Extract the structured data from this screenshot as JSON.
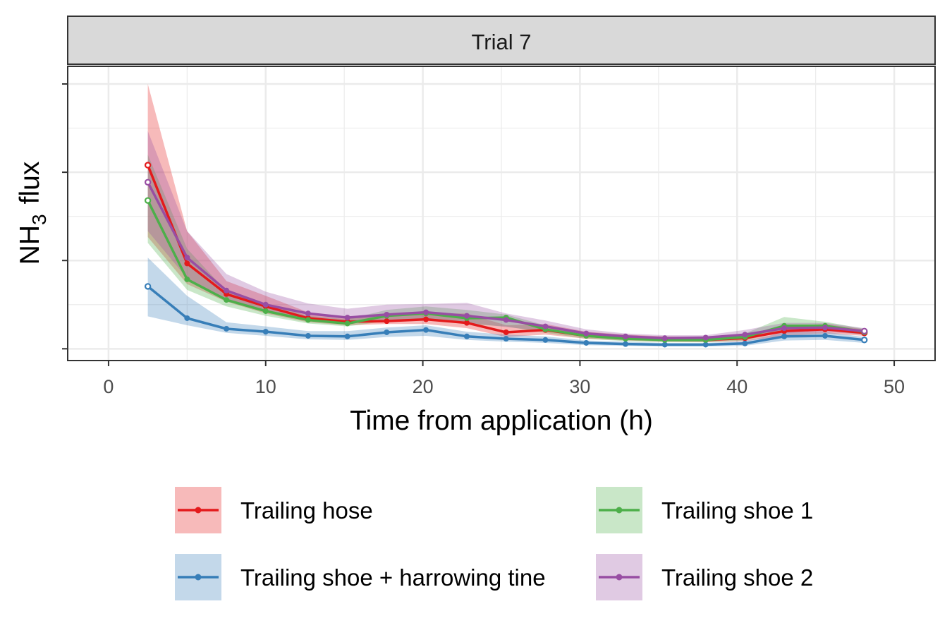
{
  "chart_data": {
    "type": "line",
    "facet_label": "Trial 7",
    "xlabel": "Time from application (h)",
    "ylabel": {
      "prefix": "NH",
      "subscript": "3",
      "suffix": "flux"
    },
    "xlim": [
      -2.6,
      52.6
    ],
    "ylim": [
      -0.2,
      4.8
    ],
    "x_ticks": [
      0,
      10,
      20,
      30,
      40,
      50
    ],
    "y_ticks_unlabeled": [
      0,
      1.5,
      3.0,
      4.5
    ],
    "grid": true,
    "legend_position": "bottom",
    "series": [
      {
        "name": "Trailing hose",
        "color": "#E41A1C",
        "x": [
          2.5,
          5,
          7.5,
          10,
          12.7,
          15.2,
          17.7,
          20.2,
          22.8,
          25.3,
          27.8,
          30.4,
          32.9,
          35.4,
          38,
          40.5,
          43,
          45.6,
          48.1
        ],
        "y": [
          3.12,
          1.45,
          0.93,
          0.72,
          0.52,
          0.46,
          0.47,
          0.5,
          0.44,
          0.28,
          0.32,
          0.22,
          0.18,
          0.16,
          0.15,
          0.18,
          0.3,
          0.33,
          0.27
        ],
        "lower": [
          1.9,
          1.1,
          0.8,
          0.6,
          0.45,
          0.4,
          0.42,
          0.42,
          0.35,
          0.2,
          0.24,
          0.17,
          0.14,
          0.12,
          0.11,
          0.13,
          0.22,
          0.26,
          0.22
        ],
        "upper": [
          4.5,
          2.0,
          1.15,
          0.9,
          0.62,
          0.54,
          0.56,
          0.6,
          0.6,
          0.4,
          0.42,
          0.29,
          0.24,
          0.21,
          0.2,
          0.24,
          0.39,
          0.42,
          0.33
        ]
      },
      {
        "name": "Trailing shoe + harrowing tine",
        "color": "#377EB8",
        "x": [
          2.5,
          5,
          7.5,
          10,
          12.7,
          15.2,
          17.7,
          20.2,
          22.8,
          25.3,
          27.8,
          30.4,
          32.9,
          35.4,
          38,
          40.5,
          43,
          45.6,
          48.1
        ],
        "y": [
          1.06,
          0.52,
          0.34,
          0.29,
          0.22,
          0.21,
          0.28,
          0.32,
          0.21,
          0.17,
          0.15,
          0.1,
          0.08,
          0.07,
          0.07,
          0.09,
          0.21,
          0.22,
          0.15
        ],
        "lower": [
          0.55,
          0.4,
          0.27,
          0.22,
          0.16,
          0.15,
          0.2,
          0.22,
          0.15,
          0.12,
          0.1,
          0.06,
          0.05,
          0.04,
          0.04,
          0.05,
          0.14,
          0.15,
          0.1
        ],
        "upper": [
          1.55,
          0.9,
          0.45,
          0.38,
          0.3,
          0.3,
          0.36,
          0.4,
          0.29,
          0.24,
          0.21,
          0.14,
          0.12,
          0.1,
          0.1,
          0.13,
          0.28,
          0.29,
          0.2
        ]
      },
      {
        "name": "Trailing shoe 1",
        "color": "#4DAF4A",
        "x": [
          2.5,
          5,
          7.5,
          10,
          12.7,
          15.2,
          17.7,
          20.2,
          22.8,
          25.3,
          27.8,
          30.4,
          32.9,
          35.4,
          38,
          40.5,
          43,
          45.6,
          48.1
        ],
        "y": [
          2.52,
          1.18,
          0.83,
          0.64,
          0.49,
          0.43,
          0.56,
          0.6,
          0.52,
          0.53,
          0.33,
          0.22,
          0.17,
          0.15,
          0.15,
          0.2,
          0.39,
          0.39,
          0.29
        ],
        "lower": [
          1.8,
          1.0,
          0.72,
          0.56,
          0.43,
          0.38,
          0.47,
          0.5,
          0.42,
          0.38,
          0.27,
          0.17,
          0.13,
          0.11,
          0.11,
          0.14,
          0.3,
          0.31,
          0.24
        ],
        "upper": [
          3.3,
          1.7,
          0.98,
          0.76,
          0.56,
          0.5,
          0.66,
          0.72,
          0.66,
          0.58,
          0.4,
          0.28,
          0.21,
          0.19,
          0.19,
          0.26,
          0.54,
          0.46,
          0.34
        ]
      },
      {
        "name": "Trailing shoe 2",
        "color": "#984EA3",
        "x": [
          2.5,
          5,
          7.5,
          10,
          12.7,
          15.2,
          17.7,
          20.2,
          22.8,
          25.3,
          27.8,
          30.4,
          32.9,
          35.4,
          38,
          40.5,
          43,
          45.6,
          48.1
        ],
        "y": [
          2.83,
          1.55,
          0.99,
          0.75,
          0.6,
          0.53,
          0.58,
          0.62,
          0.56,
          0.49,
          0.38,
          0.26,
          0.21,
          0.18,
          0.19,
          0.24,
          0.35,
          0.36,
          0.3
        ],
        "lower": [
          2.0,
          1.2,
          0.85,
          0.64,
          0.5,
          0.45,
          0.48,
          0.52,
          0.44,
          0.37,
          0.3,
          0.2,
          0.16,
          0.14,
          0.14,
          0.18,
          0.27,
          0.29,
          0.24
        ],
        "upper": [
          3.7,
          2.0,
          1.27,
          0.97,
          0.77,
          0.68,
          0.75,
          0.76,
          0.78,
          0.6,
          0.48,
          0.33,
          0.26,
          0.23,
          0.23,
          0.32,
          0.44,
          0.44,
          0.35
        ]
      }
    ]
  }
}
